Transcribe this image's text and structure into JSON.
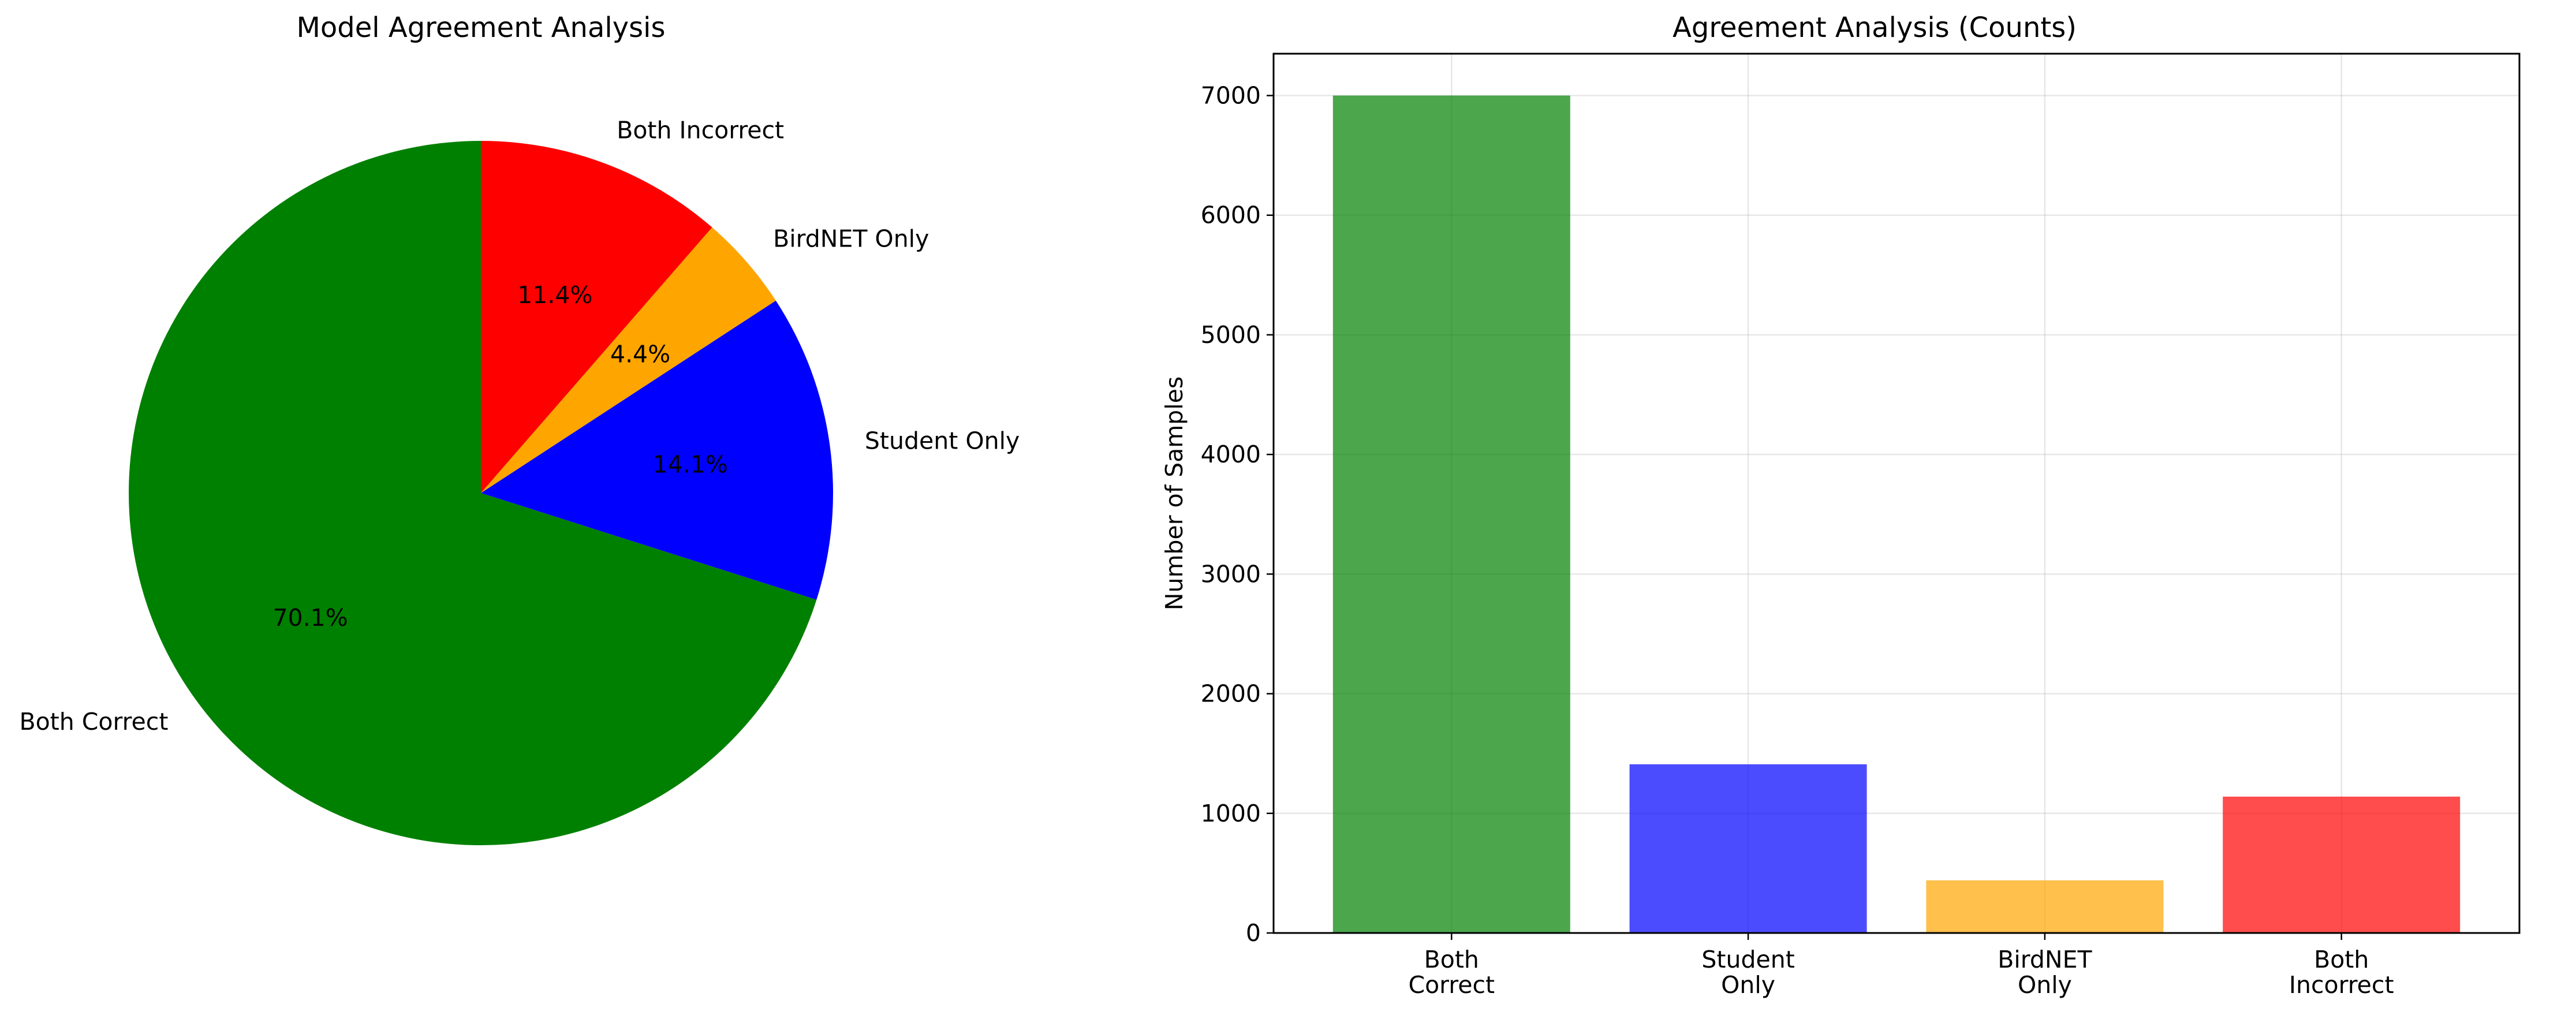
{
  "chart_data": [
    {
      "type": "pie",
      "title": "Model Agreement Analysis",
      "start_angle_deg": 90,
      "direction": "clockwise",
      "slices": [
        {
          "label": "Both Incorrect",
          "percent": 11.4,
          "pct_label": "11.4%",
          "color": "#ff0000"
        },
        {
          "label": "BirdNET Only",
          "percent": 4.4,
          "pct_label": "4.4%",
          "color": "#ffa500"
        },
        {
          "label": "Student Only",
          "percent": 14.1,
          "pct_label": "14.1%",
          "color": "#0000ff"
        },
        {
          "label": "Both Correct",
          "percent": 70.1,
          "pct_label": "70.1%",
          "color": "#008000"
        }
      ]
    },
    {
      "type": "bar",
      "title": "Agreement Analysis (Counts)",
      "xlabel": "",
      "ylabel": "Number of Samples",
      "ylim": [
        0,
        7350
      ],
      "yticks": [
        0,
        1000,
        2000,
        3000,
        4000,
        5000,
        6000,
        7000
      ],
      "grid": true,
      "bar_opacity": 0.7,
      "categories": [
        {
          "lines": [
            "Both",
            "Correct"
          ],
          "value": 7000,
          "color": "#008000"
        },
        {
          "lines": [
            "Student",
            "Only"
          ],
          "value": 1410,
          "color": "#0000ff"
        },
        {
          "lines": [
            "BirdNET",
            "Only"
          ],
          "value": 440,
          "color": "#ffa500"
        },
        {
          "lines": [
            "Both",
            "Incorrect"
          ],
          "value": 1140,
          "color": "#ff0000"
        }
      ]
    }
  ]
}
